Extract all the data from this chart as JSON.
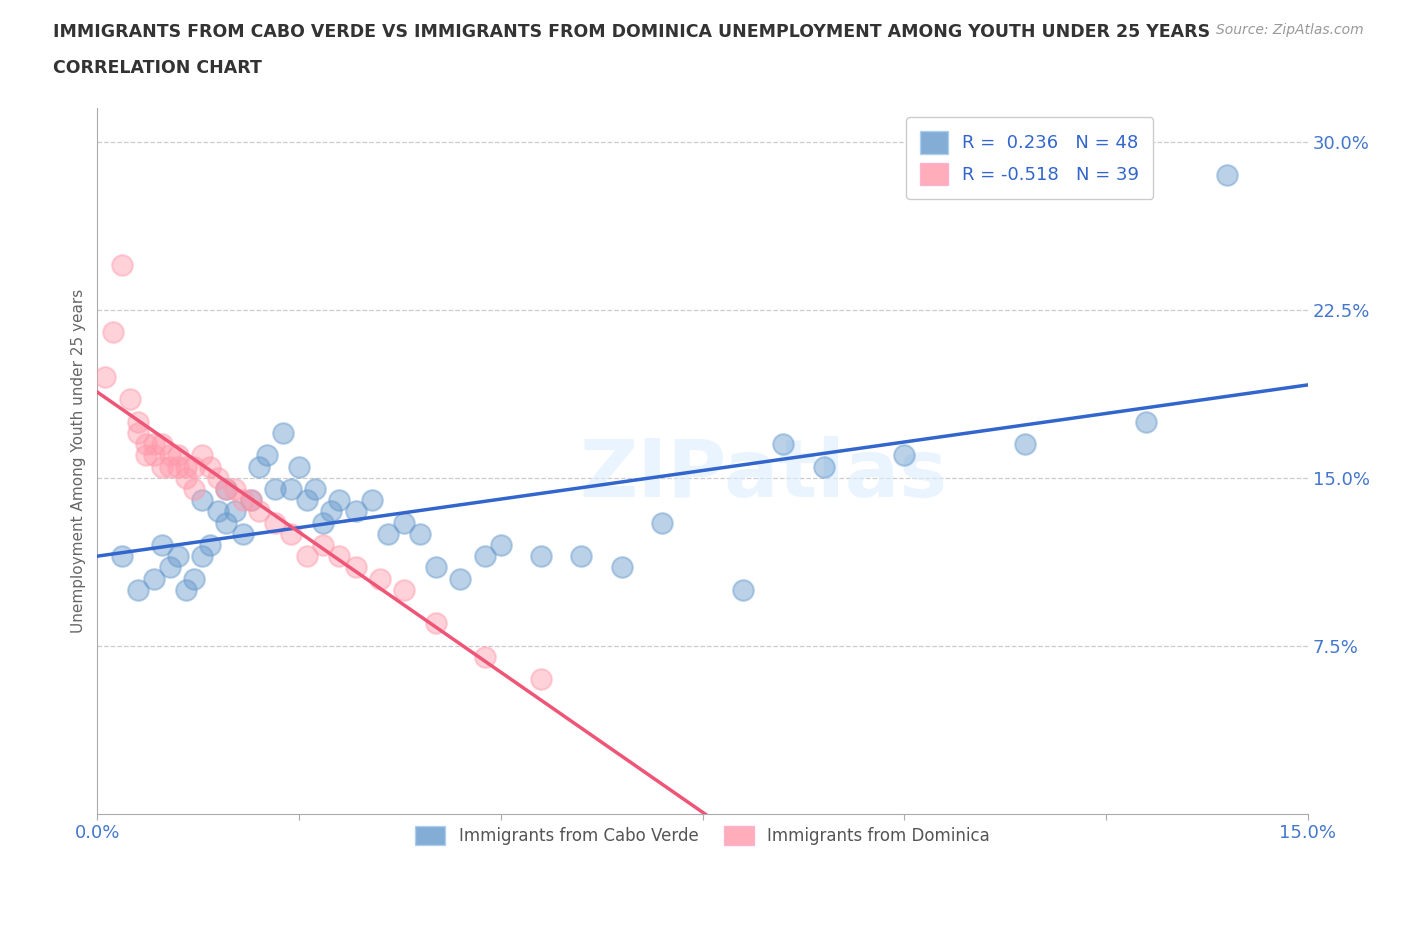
{
  "title_line1": "IMMIGRANTS FROM CABO VERDE VS IMMIGRANTS FROM DOMINICA UNEMPLOYMENT AMONG YOUTH UNDER 25 YEARS",
  "title_line2": "CORRELATION CHART",
  "source": "Source: ZipAtlas.com",
  "xlabel_blue": "Immigrants from Cabo Verde",
  "xlabel_pink": "Immigrants from Dominica",
  "ylabel": "Unemployment Among Youth under 25 years",
  "xlim": [
    0.0,
    0.15
  ],
  "ylim": [
    0.0,
    0.315
  ],
  "yticks": [
    0.0,
    0.075,
    0.15,
    0.225,
    0.3
  ],
  "ytick_labels": [
    "",
    "7.5%",
    "15.0%",
    "22.5%",
    "30.0%"
  ],
  "xticks": [
    0.0,
    0.025,
    0.05,
    0.075,
    0.1,
    0.125,
    0.15
  ],
  "xtick_labels": [
    "0.0%",
    "",
    "",
    "",
    "",
    "",
    "15.0%"
  ],
  "grid_color": "#cccccc",
  "watermark": "ZIPatlas",
  "legend_R_blue": "R =  0.236",
  "legend_N_blue": "N = 48",
  "legend_R_pink": "R = -0.518",
  "legend_N_pink": "N = 39",
  "blue_color": "#6699cc",
  "pink_color": "#ff99aa",
  "blue_line_color": "#3366cc",
  "pink_line_color": "#ee5577",
  "cabo_verde_x": [
    0.003,
    0.005,
    0.007,
    0.008,
    0.009,
    0.01,
    0.011,
    0.012,
    0.013,
    0.013,
    0.014,
    0.015,
    0.016,
    0.016,
    0.017,
    0.018,
    0.019,
    0.02,
    0.021,
    0.022,
    0.023,
    0.024,
    0.025,
    0.026,
    0.027,
    0.028,
    0.029,
    0.03,
    0.032,
    0.034,
    0.036,
    0.038,
    0.04,
    0.042,
    0.045,
    0.048,
    0.05,
    0.055,
    0.06,
    0.065,
    0.07,
    0.08,
    0.085,
    0.09,
    0.1,
    0.115,
    0.13,
    0.14
  ],
  "cabo_verde_y": [
    0.115,
    0.1,
    0.105,
    0.12,
    0.11,
    0.115,
    0.1,
    0.105,
    0.115,
    0.14,
    0.12,
    0.135,
    0.145,
    0.13,
    0.135,
    0.125,
    0.14,
    0.155,
    0.16,
    0.145,
    0.17,
    0.145,
    0.155,
    0.14,
    0.145,
    0.13,
    0.135,
    0.14,
    0.135,
    0.14,
    0.125,
    0.13,
    0.125,
    0.11,
    0.105,
    0.115,
    0.12,
    0.115,
    0.115,
    0.11,
    0.13,
    0.1,
    0.165,
    0.155,
    0.16,
    0.165,
    0.175,
    0.285
  ],
  "dominica_x": [
    0.001,
    0.002,
    0.003,
    0.004,
    0.005,
    0.005,
    0.006,
    0.006,
    0.007,
    0.007,
    0.008,
    0.008,
    0.009,
    0.009,
    0.01,
    0.01,
    0.011,
    0.011,
    0.012,
    0.012,
    0.013,
    0.014,
    0.015,
    0.016,
    0.017,
    0.018,
    0.019,
    0.02,
    0.022,
    0.024,
    0.026,
    0.028,
    0.03,
    0.032,
    0.035,
    0.038,
    0.042,
    0.048,
    0.055
  ],
  "dominica_y": [
    0.195,
    0.215,
    0.245,
    0.185,
    0.175,
    0.17,
    0.165,
    0.16,
    0.16,
    0.165,
    0.165,
    0.155,
    0.16,
    0.155,
    0.155,
    0.16,
    0.155,
    0.15,
    0.155,
    0.145,
    0.16,
    0.155,
    0.15,
    0.145,
    0.145,
    0.14,
    0.14,
    0.135,
    0.13,
    0.125,
    0.115,
    0.12,
    0.115,
    0.11,
    0.105,
    0.1,
    0.085,
    0.07,
    0.06
  ]
}
